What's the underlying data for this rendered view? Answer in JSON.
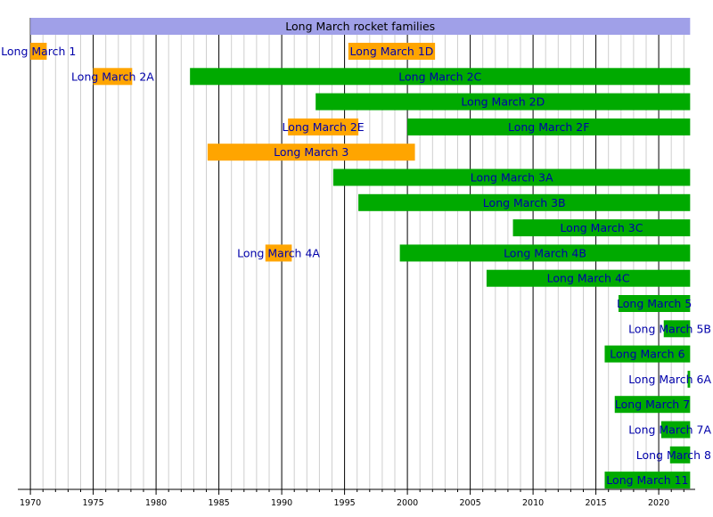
{
  "chart_data": {
    "type": "timeline",
    "title": "Long March rocket families",
    "x_range": [
      1969,
      2022.5
    ],
    "x_ticks": [
      1970,
      1975,
      1980,
      1985,
      1990,
      1995,
      2000,
      2005,
      2010,
      2015,
      2020
    ],
    "grid": "minor yearly lines, major every 5 years",
    "colors": {
      "retired": "#ffa500",
      "active": "#00aa00",
      "header": "#a0a0e8",
      "label": "#0000aa"
    },
    "header_bar": {
      "label": "Long March rocket families",
      "start": 1970,
      "end": 2022.5
    },
    "rows": [
      {
        "bars": [
          {
            "label": "Long March 1",
            "start": 1970.0,
            "end": 1971.3,
            "status": "retired"
          },
          {
            "label": "Long March 1D",
            "start": 1995.3,
            "end": 2002.2,
            "status": "retired"
          }
        ]
      },
      {
        "bars": [
          {
            "label": "Long March 2A",
            "start": 1975.0,
            "end": 1978.1,
            "status": "retired"
          },
          {
            "label": "Long March 2C",
            "start": 1982.7,
            "end": 2022.5,
            "status": "active"
          }
        ]
      },
      {
        "bars": [
          {
            "label": "Long March 2D",
            "start": 1992.7,
            "end": 2022.5,
            "status": "active"
          }
        ]
      },
      {
        "bars": [
          {
            "label": "Long March 2E",
            "start": 1990.5,
            "end": 1996.1,
            "status": "retired"
          },
          {
            "label": "Long March 2F",
            "start": 2000.0,
            "end": 2022.5,
            "status": "active"
          }
        ]
      },
      {
        "bars": [
          {
            "label": "Long March 3",
            "start": 1984.1,
            "end": 2000.6,
            "status": "retired"
          }
        ]
      },
      {
        "bars": [
          {
            "label": "Long March 3A",
            "start": 1994.1,
            "end": 2022.5,
            "status": "active"
          }
        ]
      },
      {
        "bars": [
          {
            "label": "Long March 3B",
            "start": 1996.1,
            "end": 2022.5,
            "status": "active"
          }
        ]
      },
      {
        "bars": [
          {
            "label": "Long March 3C",
            "start": 2008.4,
            "end": 2022.5,
            "status": "active"
          }
        ]
      },
      {
        "bars": [
          {
            "label": "Long March 4A",
            "start": 1988.7,
            "end": 1990.8,
            "status": "retired"
          },
          {
            "label": "Long March 4B",
            "start": 1999.4,
            "end": 2022.5,
            "status": "active"
          }
        ]
      },
      {
        "bars": [
          {
            "label": "Long March 4C",
            "start": 2006.3,
            "end": 2022.5,
            "status": "active"
          }
        ]
      },
      {
        "bars": [
          {
            "label": "Long March 5",
            "start": 2016.8,
            "end": 2022.5,
            "status": "active"
          }
        ]
      },
      {
        "bars": [
          {
            "label": "Long March 5B",
            "start": 2020.4,
            "end": 2022.5,
            "status": "active"
          }
        ]
      },
      {
        "bars": [
          {
            "label": "Long March 6",
            "start": 2015.7,
            "end": 2022.5,
            "status": "active"
          }
        ]
      },
      {
        "bars": [
          {
            "label": "Long March 6A",
            "start": 2022.3,
            "end": 2022.5,
            "status": "active"
          }
        ]
      },
      {
        "bars": [
          {
            "label": "Long March 7",
            "start": 2016.5,
            "end": 2022.5,
            "status": "active"
          }
        ]
      },
      {
        "bars": [
          {
            "label": "Long March 7A",
            "start": 2020.2,
            "end": 2022.5,
            "status": "active"
          }
        ]
      },
      {
        "bars": [
          {
            "label": "Long March 8",
            "start": 2020.9,
            "end": 2022.5,
            "status": "active"
          }
        ]
      },
      {
        "bars": [
          {
            "label": "Long March 11",
            "start": 2015.7,
            "end": 2022.5,
            "status": "active"
          }
        ]
      }
    ]
  }
}
